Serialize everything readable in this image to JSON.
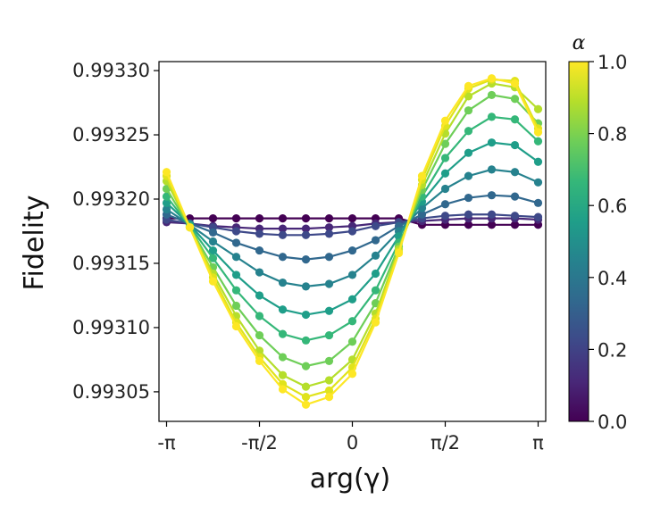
{
  "chart_data": {
    "type": "line",
    "title": "",
    "xlabel": "arg(γ)",
    "ylabel": "Fidelity",
    "x_tick_labels": [
      "-π",
      "-π/2",
      "0",
      "π/2",
      "π"
    ],
    "x_tick_values": [
      -3.14159,
      -1.5708,
      0,
      1.5708,
      3.14159
    ],
    "xlim": [
      -3.27,
      3.27
    ],
    "x": [
      -3.14159,
      -2.74889,
      -2.35619,
      -1.9635,
      -1.5708,
      -1.1781,
      -0.7854,
      -0.3927,
      0.0,
      0.3927,
      0.7854,
      1.1781,
      1.5708,
      1.9635,
      2.35619,
      2.74889,
      3.14159
    ],
    "y_tick_labels": [
      "0.99305",
      "0.99310",
      "0.99315",
      "0.99320",
      "0.99325",
      "0.99330"
    ],
    "y_tick_values": [
      0.99305,
      0.9931,
      0.99315,
      0.9932,
      0.99325,
      0.9933
    ],
    "ylim": [
      0.993027,
      0.993307
    ],
    "grid": false,
    "series": [
      {
        "alpha": 0.0,
        "color": "#440154",
        "values": [
          0.993185,
          0.993185,
          0.993185,
          0.993185,
          0.993185,
          0.993185,
          0.993185,
          0.993185,
          0.993185,
          0.993185,
          0.993185,
          0.99318,
          0.99318,
          0.99318,
          0.99318,
          0.99318,
          0.99318
        ]
      },
      {
        "alpha": 0.1,
        "color": "#482878",
        "values": [
          0.993182,
          0.993181,
          0.993179,
          0.993178,
          0.993177,
          0.993177,
          0.993177,
          0.993178,
          0.993179,
          0.993181,
          0.993182,
          0.993183,
          0.993184,
          0.993185,
          0.993185,
          0.993185,
          0.993184
        ]
      },
      {
        "alpha": 0.2,
        "color": "#3e4989",
        "values": [
          0.993184,
          0.993181,
          0.993178,
          0.993175,
          0.993173,
          0.993172,
          0.993172,
          0.993173,
          0.993175,
          0.993179,
          0.993182,
          0.993185,
          0.993187,
          0.993188,
          0.993188,
          0.993187,
          0.993186
        ]
      },
      {
        "alpha": 0.3,
        "color": "#31688e",
        "values": [
          0.993188,
          0.993181,
          0.993174,
          0.993166,
          0.99316,
          0.993155,
          0.993153,
          0.993155,
          0.99316,
          0.993168,
          0.993179,
          0.993188,
          0.993196,
          0.993201,
          0.993203,
          0.993202,
          0.993197
        ]
      },
      {
        "alpha": 0.4,
        "color": "#26828e",
        "values": [
          0.993192,
          0.99318,
          0.993167,
          0.993155,
          0.993143,
          0.993135,
          0.993132,
          0.993134,
          0.993141,
          0.993156,
          0.993175,
          0.993193,
          0.993208,
          0.993218,
          0.993223,
          0.993221,
          0.993213
        ]
      },
      {
        "alpha": 0.5,
        "color": "#1f9e89",
        "values": [
          0.993197,
          0.99318,
          0.99316,
          0.993141,
          0.993125,
          0.993114,
          0.99311,
          0.993113,
          0.993122,
          0.993142,
          0.993171,
          0.993198,
          0.99322,
          0.993236,
          0.993244,
          0.993242,
          0.993229
        ]
      },
      {
        "alpha": 0.6,
        "color": "#35b779",
        "values": [
          0.993202,
          0.993179,
          0.993154,
          0.993129,
          0.993109,
          0.993095,
          0.99309,
          0.993094,
          0.993105,
          0.993129,
          0.993166,
          0.993202,
          0.993232,
          0.993253,
          0.993264,
          0.993262,
          0.993245
        ]
      },
      {
        "alpha": 0.7,
        "color": "#6ece58",
        "values": [
          0.993208,
          0.993178,
          0.993147,
          0.993117,
          0.993094,
          0.993077,
          0.99307,
          0.993074,
          0.993089,
          0.993119,
          0.993163,
          0.993207,
          0.993243,
          0.993269,
          0.993281,
          0.993278,
          0.993259
        ]
      },
      {
        "alpha": 0.8,
        "color": "#b5de2b",
        "values": [
          0.993214,
          0.993178,
          0.993142,
          0.993109,
          0.993082,
          0.993063,
          0.993054,
          0.993059,
          0.993075,
          0.993111,
          0.993161,
          0.993211,
          0.993251,
          0.99328,
          0.99329,
          0.993287,
          0.99327
        ]
      },
      {
        "alpha": 0.9,
        "color": "#e0e31c",
        "values": [
          0.993218,
          0.993178,
          0.993139,
          0.993104,
          0.993077,
          0.993056,
          0.993046,
          0.993051,
          0.993069,
          0.993107,
          0.993159,
          0.993215,
          0.993257,
          0.993286,
          0.993293,
          0.993292,
          0.993255
        ]
      },
      {
        "alpha": 1.0,
        "color": "#fde725",
        "values": [
          0.993221,
          0.993178,
          0.993136,
          0.993101,
          0.993074,
          0.993052,
          0.99304,
          0.993046,
          0.993064,
          0.993104,
          0.993158,
          0.993218,
          0.993261,
          0.993288,
          0.993294,
          0.99329,
          0.993252
        ]
      }
    ],
    "colorbar": {
      "label": "α",
      "range": [
        0.0,
        1.0
      ],
      "tick_labels": [
        "0.0",
        "0.2",
        "0.4",
        "0.6",
        "0.8",
        "1.0"
      ],
      "tick_values": [
        0.0,
        0.2,
        0.4,
        0.6,
        0.8,
        1.0
      ],
      "colormap": "viridis",
      "stops": [
        "#440154",
        "#482878",
        "#3e4989",
        "#31688e",
        "#26828e",
        "#1f9e89",
        "#35b779",
        "#6ece58",
        "#b5de2b",
        "#fde725"
      ]
    }
  }
}
